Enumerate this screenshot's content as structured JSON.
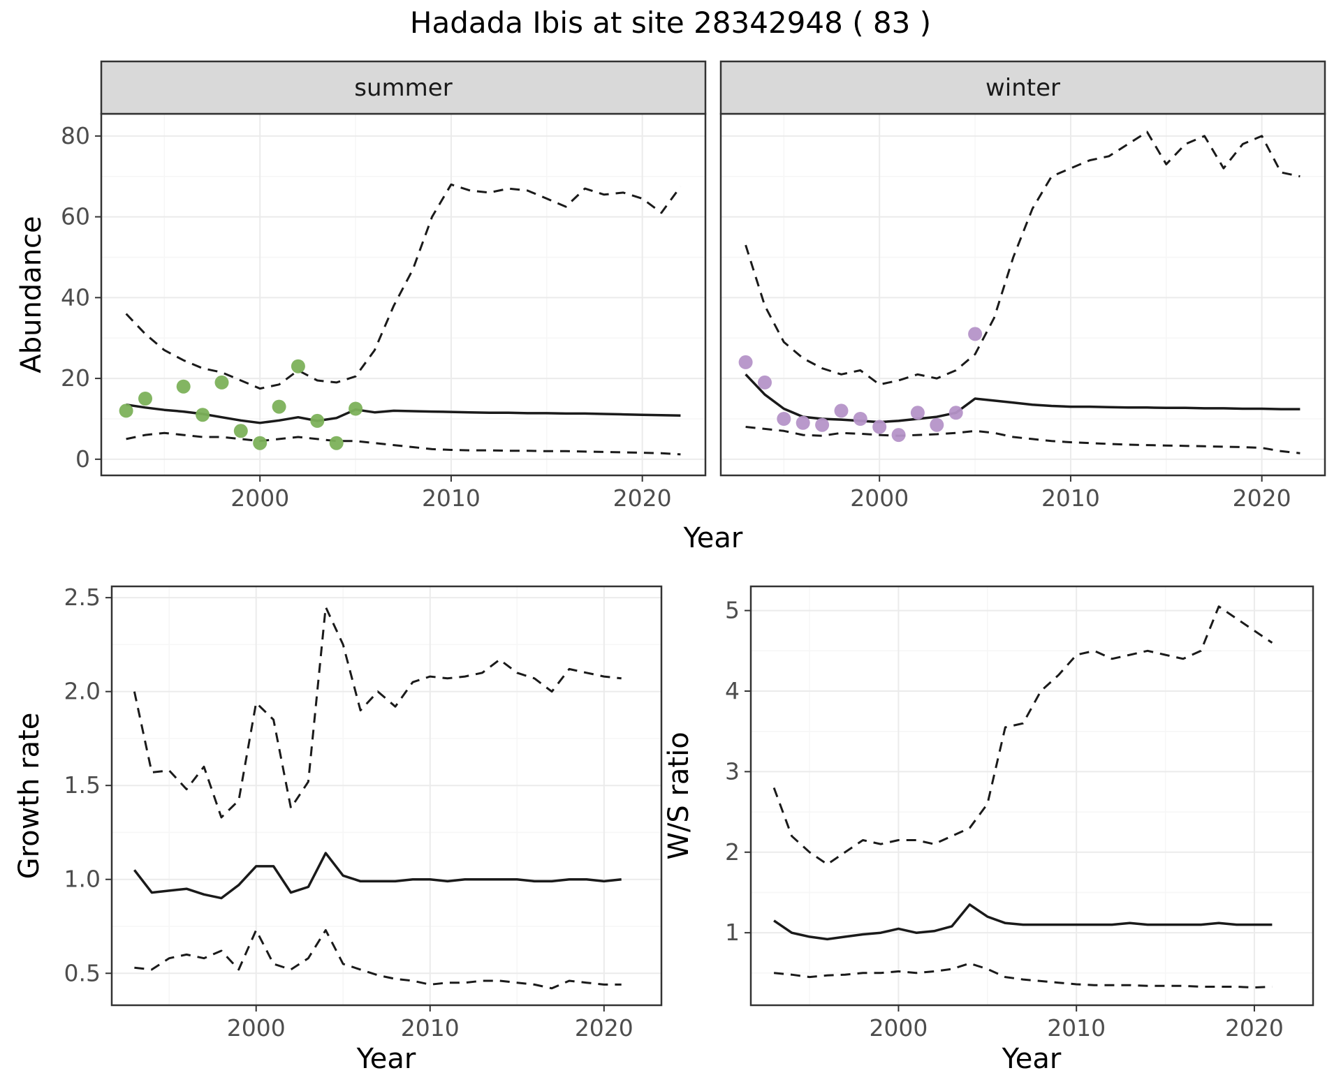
{
  "title": "Hadada Ibis at site 28342948 ( 83 )",
  "labels": {
    "facet_summer": "summer",
    "facet_winter": "winter",
    "abundance_y": "Abundance",
    "year_top": "Year",
    "growth_y": "Growth rate",
    "year_growth": "Year",
    "ws_y": "W/S ratio",
    "year_ws": "Year"
  },
  "colors": {
    "line": "#1a1a1a",
    "summer_points": "#7cb15a",
    "winter_points": "#b593c8",
    "strip_fill": "#d9d9d9",
    "panel_border": "#333333",
    "grid_major": "#ebebeb",
    "grid_minor": "#f6f6f6",
    "tick_text": "#4d4d4d"
  },
  "chart_data": [
    {
      "id": "abundance-summer",
      "type": "line",
      "title": "summer",
      "xlabel": "Year",
      "ylabel": "Abundance",
      "xlim": [
        1991.7,
        2023.3
      ],
      "ylim": [
        -4,
        85.5
      ],
      "xticks": [
        2000,
        2010,
        2020
      ],
      "xtick_labels": [
        "2000",
        "2010",
        "2020"
      ],
      "yticks": [
        0,
        20,
        40,
        60,
        80
      ],
      "ytick_labels": [
        "0",
        "20",
        "40",
        "60",
        "80"
      ],
      "xminor": [
        1995,
        2005,
        2015
      ],
      "yminor": [
        10,
        30,
        50,
        70
      ],
      "x": [
        1993,
        1994,
        1995,
        1996,
        1997,
        1998,
        1999,
        2000,
        2001,
        2002,
        2003,
        2004,
        2005,
        2006,
        2007,
        2008,
        2009,
        2010,
        2011,
        2012,
        2013,
        2014,
        2015,
        2016,
        2017,
        2018,
        2019,
        2020,
        2021,
        2022
      ],
      "series": [
        {
          "name": "fit",
          "style": "solid",
          "values": [
            13.5,
            12.8,
            12.2,
            11.8,
            11.2,
            10.4,
            9.6,
            9.0,
            9.6,
            10.4,
            9.5,
            10.2,
            12.3,
            11.6,
            12.0,
            11.9,
            11.8,
            11.7,
            11.6,
            11.5,
            11.5,
            11.4,
            11.4,
            11.3,
            11.3,
            11.2,
            11.1,
            11.0,
            10.9,
            10.8
          ]
        },
        {
          "name": "upper_ci",
          "style": "dashed",
          "values": [
            36,
            31,
            27,
            24.5,
            22.5,
            21.5,
            19.5,
            17.5,
            18.5,
            22,
            19.5,
            19,
            20.5,
            27,
            38,
            47,
            60,
            68,
            66.5,
            66,
            67,
            66.5,
            64.5,
            62.5,
            67,
            65.5,
            66,
            64.5,
            61,
            67.5
          ]
        },
        {
          "name": "lower_ci",
          "style": "dashed",
          "values": [
            5,
            6,
            6.5,
            6,
            5.5,
            5.5,
            5,
            4.5,
            5,
            5.5,
            5,
            4.5,
            4.5,
            4,
            3.5,
            3,
            2.5,
            2.3,
            2.2,
            2.2,
            2.1,
            2.1,
            2,
            2,
            1.9,
            1.8,
            1.7,
            1.6,
            1.5,
            1.2
          ]
        }
      ],
      "points": {
        "name": "observed-counts",
        "color_key": "summer_points",
        "x": [
          1993,
          1994,
          1996,
          1997,
          1998,
          1999,
          2000,
          2001,
          2002,
          2003,
          2004,
          2005
        ],
        "y": [
          12,
          15,
          18,
          11,
          19,
          7,
          4,
          13,
          23,
          9.5,
          4,
          12.5
        ]
      }
    },
    {
      "id": "abundance-winter",
      "type": "line",
      "title": "winter",
      "xlabel": "Year",
      "ylabel": "Abundance",
      "xlim": [
        1991.7,
        2023.3
      ],
      "ylim": [
        -4,
        85.5
      ],
      "xticks": [
        2000,
        2010,
        2020
      ],
      "xtick_labels": [
        "2000",
        "2010",
        "2020"
      ],
      "yticks": [
        0,
        20,
        40,
        60,
        80
      ],
      "ytick_labels": [
        "0",
        "20",
        "40",
        "60",
        "80"
      ],
      "xminor": [
        1995,
        2005,
        2015
      ],
      "yminor": [
        10,
        30,
        50,
        70
      ],
      "x": [
        1993,
        1994,
        1995,
        1996,
        1997,
        1998,
        1999,
        2000,
        2001,
        2002,
        2003,
        2004,
        2005,
        2006,
        2007,
        2008,
        2009,
        2010,
        2011,
        2012,
        2013,
        2014,
        2015,
        2016,
        2017,
        2018,
        2019,
        2020,
        2021,
        2022
      ],
      "series": [
        {
          "name": "fit",
          "style": "solid",
          "values": [
            21,
            16,
            12.5,
            10.5,
            10,
            9.8,
            9.5,
            9.2,
            9.5,
            10,
            10.5,
            11.5,
            15,
            14.5,
            14,
            13.5,
            13.2,
            13,
            13,
            12.9,
            12.8,
            12.8,
            12.7,
            12.7,
            12.6,
            12.6,
            12.5,
            12.5,
            12.4,
            12.4
          ]
        },
        {
          "name": "upper_ci",
          "style": "dashed",
          "values": [
            53,
            38,
            29,
            25,
            22.5,
            21,
            22,
            18.5,
            19.5,
            21,
            20,
            22,
            26,
            35,
            50,
            62,
            70,
            72,
            74,
            75,
            78,
            81,
            73,
            78,
            80,
            72,
            78,
            80,
            71,
            70
          ]
        },
        {
          "name": "lower_ci",
          "style": "dashed",
          "values": [
            8,
            7.5,
            7,
            6,
            5.8,
            6.5,
            6.3,
            6,
            5.8,
            6,
            6.2,
            6.5,
            7,
            6.5,
            5.5,
            5,
            4.5,
            4.2,
            4,
            3.8,
            3.6,
            3.5,
            3.4,
            3.3,
            3.2,
            3.1,
            3,
            2.8,
            2,
            1.5
          ]
        }
      ],
      "points": {
        "name": "observed-counts",
        "color_key": "winter_points",
        "x": [
          1993,
          1994,
          1995,
          1996,
          1997,
          1998,
          1999,
          2000,
          2001,
          2002,
          2003,
          2004,
          2005
        ],
        "y": [
          24,
          19,
          10,
          9,
          8.5,
          12,
          10,
          8,
          6,
          11.5,
          8.5,
          11.5,
          31
        ]
      }
    },
    {
      "id": "growth-rate",
      "type": "line",
      "title": "",
      "xlabel": "Year",
      "ylabel": "Growth rate",
      "xlim": [
        1991.7,
        2023.3
      ],
      "ylim": [
        0.33,
        2.56
      ],
      "xticks": [
        2000,
        2010,
        2020
      ],
      "xtick_labels": [
        "2000",
        "2010",
        "2020"
      ],
      "yticks": [
        0.5,
        1.0,
        1.5,
        2.0,
        2.5
      ],
      "ytick_labels": [
        "0.5",
        "1.0",
        "1.5",
        "2.0",
        "2.5"
      ],
      "xminor": [
        1995,
        2005,
        2015
      ],
      "yminor": [
        0.75,
        1.25,
        1.75,
        2.25
      ],
      "x": [
        1993,
        1994,
        1995,
        1996,
        1997,
        1998,
        1999,
        2000,
        2001,
        2002,
        2003,
        2004,
        2005,
        2006,
        2007,
        2008,
        2009,
        2010,
        2011,
        2012,
        2013,
        2014,
        2015,
        2016,
        2017,
        2018,
        2019,
        2020,
        2021
      ],
      "series": [
        {
          "name": "fit",
          "style": "solid",
          "values": [
            1.05,
            0.93,
            0.94,
            0.95,
            0.92,
            0.9,
            0.97,
            1.07,
            1.07,
            0.93,
            0.96,
            1.14,
            1.02,
            0.99,
            0.99,
            0.99,
            1.0,
            1.0,
            0.99,
            1.0,
            1.0,
            1.0,
            1.0,
            0.99,
            0.99,
            1.0,
            1.0,
            0.99,
            1.0
          ]
        },
        {
          "name": "upper_ci",
          "style": "dashed",
          "values": [
            2.0,
            1.57,
            1.58,
            1.48,
            1.6,
            1.33,
            1.42,
            1.94,
            1.85,
            1.38,
            1.52,
            2.45,
            2.25,
            1.9,
            2.0,
            1.92,
            2.05,
            2.08,
            2.07,
            2.08,
            2.1,
            2.17,
            2.1,
            2.07,
            2.0,
            2.12,
            2.1,
            2.08,
            2.07
          ]
        },
        {
          "name": "lower_ci",
          "style": "dashed",
          "values": [
            0.53,
            0.52,
            0.58,
            0.6,
            0.58,
            0.62,
            0.52,
            0.73,
            0.55,
            0.52,
            0.58,
            0.73,
            0.55,
            0.52,
            0.49,
            0.47,
            0.46,
            0.44,
            0.45,
            0.45,
            0.46,
            0.46,
            0.45,
            0.44,
            0.42,
            0.46,
            0.45,
            0.44,
            0.44
          ]
        }
      ]
    },
    {
      "id": "ws-ratio",
      "type": "line",
      "title": "",
      "xlabel": "Year",
      "ylabel": "W/S ratio",
      "xlim": [
        1991.7,
        2023.3
      ],
      "ylim": [
        0.1,
        5.3
      ],
      "xticks": [
        2000,
        2010,
        2020
      ],
      "xtick_labels": [
        "2000",
        "2010",
        "2020"
      ],
      "yticks": [
        1,
        2,
        3,
        4,
        5
      ],
      "ytick_labels": [
        "1",
        "2",
        "3",
        "4",
        "5"
      ],
      "xminor": [
        1995,
        2005,
        2015
      ],
      "yminor": [
        0.5,
        1.5,
        2.5,
        3.5,
        4.5
      ],
      "x": [
        1993,
        1994,
        1995,
        1996,
        1997,
        1998,
        1999,
        2000,
        2001,
        2002,
        2003,
        2004,
        2005,
        2006,
        2007,
        2008,
        2009,
        2010,
        2011,
        2012,
        2013,
        2014,
        2015,
        2016,
        2017,
        2018,
        2019,
        2020,
        2021
      ],
      "series": [
        {
          "name": "fit",
          "style": "solid",
          "values": [
            1.15,
            1.0,
            0.95,
            0.92,
            0.95,
            0.98,
            1.0,
            1.05,
            1.0,
            1.02,
            1.08,
            1.35,
            1.2,
            1.12,
            1.1,
            1.1,
            1.1,
            1.1,
            1.1,
            1.1,
            1.12,
            1.1,
            1.1,
            1.1,
            1.1,
            1.12,
            1.1,
            1.1,
            1.1
          ]
        },
        {
          "name": "upper_ci",
          "style": "dashed",
          "values": [
            2.8,
            2.2,
            2.0,
            1.85,
            2.0,
            2.15,
            2.1,
            2.15,
            2.15,
            2.1,
            2.2,
            2.3,
            2.6,
            3.55,
            3.6,
            4.0,
            4.2,
            4.45,
            4.5,
            4.4,
            4.45,
            4.5,
            4.45,
            4.4,
            4.5,
            5.05,
            4.9,
            4.75,
            4.6
          ]
        },
        {
          "name": "lower_ci",
          "style": "dashed",
          "values": [
            0.5,
            0.48,
            0.45,
            0.47,
            0.48,
            0.5,
            0.5,
            0.52,
            0.5,
            0.52,
            0.55,
            0.62,
            0.55,
            0.45,
            0.42,
            0.4,
            0.38,
            0.36,
            0.35,
            0.35,
            0.35,
            0.34,
            0.34,
            0.34,
            0.33,
            0.33,
            0.33,
            0.32,
            0.33
          ]
        }
      ]
    }
  ]
}
